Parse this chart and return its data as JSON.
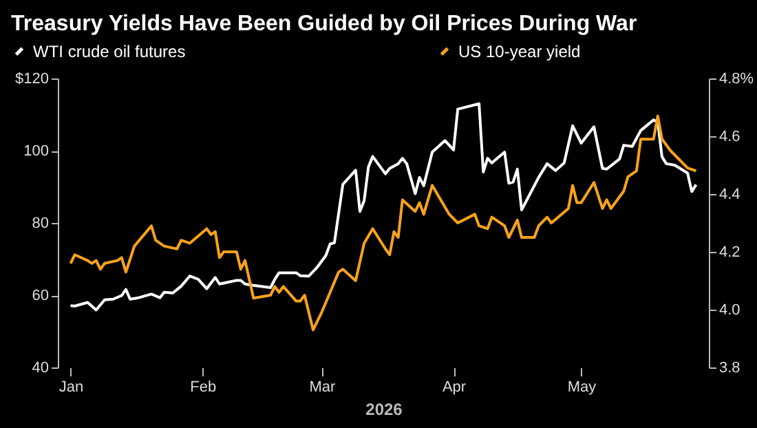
{
  "chart_data": {
    "type": "line",
    "title": "Treasury Yields Have Been Guided by Oil Prices During War",
    "xlabel": "2026",
    "legend": "top",
    "grid": false,
    "xlim": [
      "2025-12-29",
      "2026-05-31"
    ],
    "xticks": [
      {
        "value": "2026-01-01",
        "label": "Jan"
      },
      {
        "value": "2026-02-01",
        "label": "Feb"
      },
      {
        "value": "2026-03-01",
        "label": "Mar"
      },
      {
        "value": "2026-04-01",
        "label": "Apr"
      },
      {
        "value": "2026-05-01",
        "label": "May"
      }
    ],
    "ylim": [
      40,
      120
    ],
    "yticks": [
      40,
      60,
      80,
      100,
      {
        "value": 120,
        "label": "$120"
      }
    ],
    "y2lim": [
      3.8,
      4.8
    ],
    "y2ticks": [
      3.8,
      {
        "value": 4,
        "label": "4.0"
      },
      4.2,
      4.4,
      4.6,
      {
        "value": 4.8,
        "label": "4.8%"
      }
    ],
    "series": [
      {
        "name": "WTI crude oil futures",
        "color": "#ffffff",
        "axis": "y",
        "x": [
          "2026-01-01",
          "2026-01-02",
          "2026-01-05",
          "2026-01-07",
          "2026-01-09",
          "2026-01-11",
          "2026-01-13",
          "2026-01-14",
          "2026-01-15",
          "2026-01-17",
          "2026-01-20",
          "2026-01-22",
          "2026-01-23",
          "2026-01-25",
          "2026-01-27",
          "2026-01-29",
          "2026-01-31",
          "2026-02-02",
          "2026-02-04",
          "2026-02-05",
          "2026-02-09",
          "2026-02-10",
          "2026-02-11",
          "2026-02-13",
          "2026-02-17",
          "2026-02-18",
          "2026-02-19",
          "2026-02-23",
          "2026-02-24",
          "2026-02-26",
          "2026-02-28",
          "2026-03-02",
          "2026-03-03",
          "2026-03-04",
          "2026-03-06",
          "2026-03-09",
          "2026-03-10",
          "2026-03-11",
          "2026-03-12",
          "2026-03-13",
          "2026-03-16",
          "2026-03-17",
          "2026-03-19",
          "2026-03-20",
          "2026-03-21",
          "2026-03-23",
          "2026-03-24",
          "2026-03-25",
          "2026-03-27",
          "2026-03-30",
          "2026-04-01",
          "2026-04-02",
          "2026-04-07",
          "2026-04-08",
          "2026-04-09",
          "2026-04-10",
          "2026-04-13",
          "2026-04-14",
          "2026-04-15",
          "2026-04-16",
          "2026-04-17",
          "2026-04-21",
          "2026-04-23",
          "2026-04-25",
          "2026-04-27",
          "2026-04-29",
          "2026-05-01",
          "2026-05-04",
          "2026-05-06",
          "2026-05-07",
          "2026-05-10",
          "2026-05-11",
          "2026-05-13",
          "2026-05-15",
          "2026-05-18",
          "2026-05-19",
          "2026-05-20",
          "2026-05-21",
          "2026-05-23",
          "2026-05-26",
          "2026-05-27",
          "2026-05-28"
        ],
        "values": [
          57.1,
          57.0,
          58.0,
          55.9,
          58.7,
          58.9,
          59.9,
          61.6,
          58.9,
          59.3,
          60.3,
          59.3,
          60.8,
          60.6,
          62.5,
          65.3,
          64.4,
          61.8,
          64.9,
          63.1,
          64.1,
          64.1,
          63.1,
          62.7,
          62.1,
          64.4,
          66.2,
          66.2,
          65.4,
          65.3,
          67.8,
          71.0,
          74.2,
          74.5,
          90.7,
          94.6,
          83.2,
          86.2,
          95.5,
          98.4,
          93.6,
          95.1,
          96.4,
          97.9,
          96.4,
          88.1,
          92.6,
          90.3,
          99.6,
          102.8,
          100.2,
          111.5,
          113.0,
          94.1,
          97.9,
          96.6,
          99.6,
          91.0,
          91.3,
          94.9,
          83.6,
          92.6,
          96.4,
          94.5,
          96.6,
          106.9,
          102.1,
          106.6,
          95.1,
          94.9,
          97.7,
          101.5,
          101.2,
          105.6,
          108.5,
          107.9,
          98.3,
          96.4,
          96.0,
          93.8,
          88.7,
          90.6
        ]
      },
      {
        "name": "US 10-year yield",
        "color": "#f7a21b",
        "axis": "y2",
        "x": [
          "2026-01-01",
          "2026-01-02",
          "2026-01-05",
          "2026-01-06",
          "2026-01-07",
          "2026-01-08",
          "2026-01-09",
          "2026-01-12",
          "2026-01-13",
          "2026-01-14",
          "2026-01-16",
          "2026-01-20",
          "2026-01-21",
          "2026-01-23",
          "2026-01-26",
          "2026-01-27",
          "2026-01-29",
          "2026-02-02",
          "2026-02-03",
          "2026-02-04",
          "2026-02-05",
          "2026-02-06",
          "2026-02-09",
          "2026-02-10",
          "2026-02-11",
          "2026-02-13",
          "2026-02-17",
          "2026-02-18",
          "2026-02-19",
          "2026-02-20",
          "2026-02-23",
          "2026-02-24",
          "2026-02-25",
          "2026-02-27",
          "2026-03-01",
          "2026-03-03",
          "2026-03-05",
          "2026-03-06",
          "2026-03-09",
          "2026-03-11",
          "2026-03-13",
          "2026-03-16",
          "2026-03-17",
          "2026-03-18",
          "2026-03-19",
          "2026-03-20",
          "2026-03-23",
          "2026-03-24",
          "2026-03-25",
          "2026-03-27",
          "2026-03-31",
          "2026-04-02",
          "2026-04-06",
          "2026-04-07",
          "2026-04-09",
          "2026-04-10",
          "2026-04-13",
          "2026-04-14",
          "2026-04-16",
          "2026-04-17",
          "2026-04-20",
          "2026-04-21",
          "2026-04-23",
          "2026-04-24",
          "2026-04-28",
          "2026-04-29",
          "2026-04-30",
          "2026-05-01",
          "2026-05-04",
          "2026-05-06",
          "2026-05-07",
          "2026-05-08",
          "2026-05-11",
          "2026-05-12",
          "2026-05-14",
          "2026-05-15",
          "2026-05-18",
          "2026-05-19",
          "2026-05-20",
          "2026-05-22",
          "2026-05-26",
          "2026-05-28"
        ],
        "values": [
          4.16,
          4.19,
          4.17,
          4.16,
          4.17,
          4.14,
          4.16,
          4.17,
          4.18,
          4.13,
          4.22,
          4.29,
          4.24,
          4.22,
          4.21,
          4.24,
          4.23,
          4.28,
          4.26,
          4.27,
          4.18,
          4.2,
          4.2,
          4.14,
          4.17,
          4.04,
          4.05,
          4.08,
          4.06,
          4.08,
          4.03,
          4.03,
          4.05,
          3.93,
          3.99,
          4.06,
          4.13,
          4.14,
          4.1,
          4.23,
          4.28,
          4.21,
          4.19,
          4.27,
          4.25,
          4.38,
          4.34,
          4.37,
          4.33,
          4.43,
          4.33,
          4.3,
          4.33,
          4.29,
          4.28,
          4.32,
          4.29,
          4.25,
          4.31,
          4.25,
          4.25,
          4.29,
          4.32,
          4.3,
          4.35,
          4.43,
          4.37,
          4.37,
          4.44,
          4.35,
          4.38,
          4.35,
          4.41,
          4.46,
          4.48,
          4.59,
          4.59,
          4.67,
          4.59,
          4.55,
          4.49,
          4.48
        ]
      }
    ]
  }
}
